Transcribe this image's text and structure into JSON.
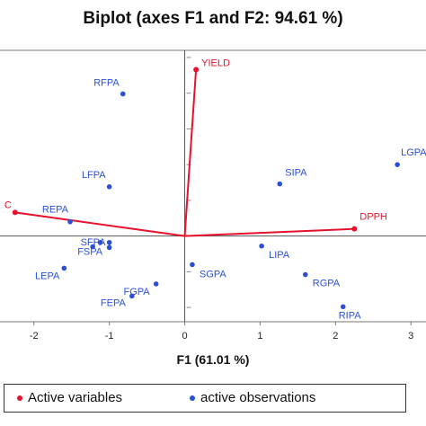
{
  "chart_data": {
    "type": "scatter",
    "title": "Biplot (axes F1 and F2: 94.61 %)",
    "xlabel": "F1 (61.01 %)",
    "ylabel": "",
    "xlim": [
      -2.45,
      3.2
    ],
    "ylim": [
      -1.2,
      2.6
    ],
    "xticks": [
      "-2",
      "-1",
      "0",
      "1",
      "2",
      "3"
    ],
    "colors": {
      "variables": "#e8112d",
      "observations": "#2b4fd6",
      "axis": "#555555"
    },
    "variables": [
      {
        "name": "YIELD",
        "x": 0.15,
        "y": 2.33
      },
      {
        "name": "DPPH",
        "x": 2.25,
        "y": 0.1
      },
      {
        "name": "C",
        "x": -2.25,
        "y": 0.33
      }
    ],
    "observations": [
      {
        "name": "RFPA",
        "x": -0.82,
        "y": 1.99
      },
      {
        "name": "LGPA",
        "x": 2.82,
        "y": 1.0
      },
      {
        "name": "SIPA",
        "x": 1.26,
        "y": 0.73
      },
      {
        "name": "LFPA",
        "x": -1.0,
        "y": 0.69
      },
      {
        "name": "REPA",
        "x": -1.52,
        "y": 0.2
      },
      {
        "name": "SFPA",
        "x": -1.12,
        "y": -0.09
      },
      {
        "name": "FSPA",
        "x": -1.22,
        "y": -0.15
      },
      {
        "name": "",
        "x": -1.0,
        "y": -0.09
      },
      {
        "name": "",
        "x": -1.0,
        "y": -0.16
      },
      {
        "name": "LEPA",
        "x": -1.6,
        "y": -0.45
      },
      {
        "name": "FGPA",
        "x": -0.38,
        "y": -0.67
      },
      {
        "name": "FEPA",
        "x": -0.7,
        "y": -0.84
      },
      {
        "name": "SGPA",
        "x": 0.1,
        "y": -0.4
      },
      {
        "name": "LIPA",
        "x": 1.02,
        "y": -0.14
      },
      {
        "name": "RGPA",
        "x": 1.6,
        "y": -0.54
      },
      {
        "name": "RIPA",
        "x": 2.1,
        "y": -0.99
      }
    ]
  },
  "legend": {
    "variables": "Active variables",
    "observations": "active observations"
  }
}
